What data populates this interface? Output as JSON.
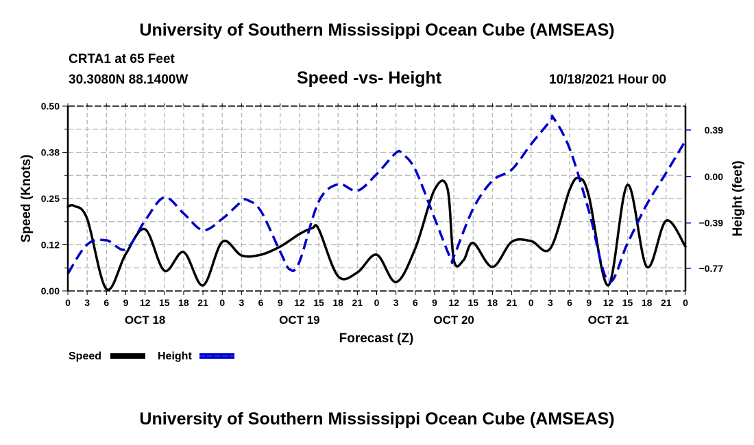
{
  "header": {
    "main_title": "University of Southern Mississippi Ocean Cube (AMSEAS)",
    "station": "CRTA1 at 65 Feet",
    "coords": "30.3080N  88.1400W",
    "subtitle": "Speed -vs- Height",
    "datetime": "10/18/2021 Hour 00",
    "bottom_title": "University of Southern Mississippi Ocean Cube (AMSEAS)"
  },
  "colors": {
    "speed": "#000000",
    "height": "#0000cc",
    "grid": "#b4b4b4"
  },
  "chart_data": {
    "type": "line",
    "title": "Speed -vs- Height",
    "xlabel": "Forecast (Z)",
    "ylabel": "Speed (Knots)",
    "y2label": "Height (feet)",
    "grid": true,
    "legend_position": "bottom-left",
    "x_unit": "hours since 10/18/2021 00Z",
    "xlim": [
      0,
      96
    ],
    "ylim": [
      0,
      0.5
    ],
    "y2lim": [
      -0.96,
      0.59
    ],
    "x_ticks": [
      0,
      3,
      6,
      9,
      12,
      15,
      18,
      21,
      24,
      27,
      30,
      33,
      36,
      39,
      42,
      45,
      48,
      51,
      54,
      57,
      60,
      63,
      66,
      69,
      72,
      75,
      78,
      81,
      84,
      87,
      90,
      93,
      96
    ],
    "x_tick_labels": [
      "0",
      "3",
      "6",
      "9",
      "12",
      "15",
      "18",
      "21",
      "0",
      "3",
      "6",
      "9",
      "12",
      "15",
      "18",
      "21",
      "0",
      "3",
      "6",
      "9",
      "12",
      "15",
      "18",
      "21",
      "0",
      "3",
      "6",
      "9",
      "12",
      "15",
      "18",
      "21",
      "0"
    ],
    "day_labels": [
      {
        "label": "OCT 18",
        "hour": 12
      },
      {
        "label": "OCT 19",
        "hour": 36
      },
      {
        "label": "OCT 20",
        "hour": 60
      },
      {
        "label": "OCT 21",
        "hour": 84
      }
    ],
    "y_ticks": [
      0.0,
      0.125,
      0.25,
      0.375,
      0.5
    ],
    "y_tick_labels": [
      "0.00",
      "0.12",
      "0.25",
      "0.38",
      "0.50"
    ],
    "y2_ticks": [
      0.39,
      0.0,
      -0.39,
      -0.77
    ],
    "y2_tick_labels": [
      "0.39",
      "0.00",
      "−0.39",
      "−0.77"
    ],
    "series": [
      {
        "name": "Speed",
        "axis": "left",
        "style": "solid",
        "x": [
          0,
          1,
          3,
          6,
          9,
          12,
          15,
          18,
          21,
          24,
          27,
          30,
          33,
          36,
          38,
          39,
          42,
          45,
          48,
          51,
          54,
          57,
          59,
          60,
          61.5,
          63,
          66,
          69,
          72,
          75,
          78,
          79.5,
          81,
          84,
          87,
          90,
          93,
          96
        ],
        "values": [
          0.228,
          0.23,
          0.195,
          0.005,
          0.1,
          0.167,
          0.055,
          0.105,
          0.015,
          0.133,
          0.096,
          0.098,
          0.12,
          0.154,
          0.17,
          0.167,
          0.04,
          0.05,
          0.098,
          0.024,
          0.115,
          0.274,
          0.278,
          0.083,
          0.083,
          0.13,
          0.065,
          0.133,
          0.135,
          0.115,
          0.274,
          0.305,
          0.256,
          0.015,
          0.287,
          0.065,
          0.19,
          0.12
        ]
      },
      {
        "name": "Height",
        "axis": "right",
        "style": "dashed",
        "x": [
          0,
          3,
          6,
          9,
          12,
          15,
          18,
          21,
          24,
          27,
          28,
          30,
          33,
          34.5,
          36,
          39,
          42,
          45,
          48,
          51,
          52,
          54,
          57,
          59.5,
          60,
          63,
          66,
          69,
          72,
          75,
          75.5,
          78,
          81,
          84,
          87,
          90,
          93,
          96
        ],
        "values": [
          -0.815,
          -0.57,
          -0.535,
          -0.61,
          -0.37,
          -0.175,
          -0.31,
          -0.45,
          -0.355,
          -0.21,
          -0.2,
          -0.29,
          -0.63,
          -0.78,
          -0.715,
          -0.21,
          -0.065,
          -0.12,
          0.02,
          0.198,
          0.19,
          0.058,
          -0.35,
          -0.687,
          -0.67,
          -0.27,
          -0.035,
          0.058,
          0.27,
          0.466,
          0.49,
          0.233,
          -0.29,
          -0.88,
          -0.56,
          -0.233,
          0.03,
          0.3
        ]
      }
    ]
  }
}
